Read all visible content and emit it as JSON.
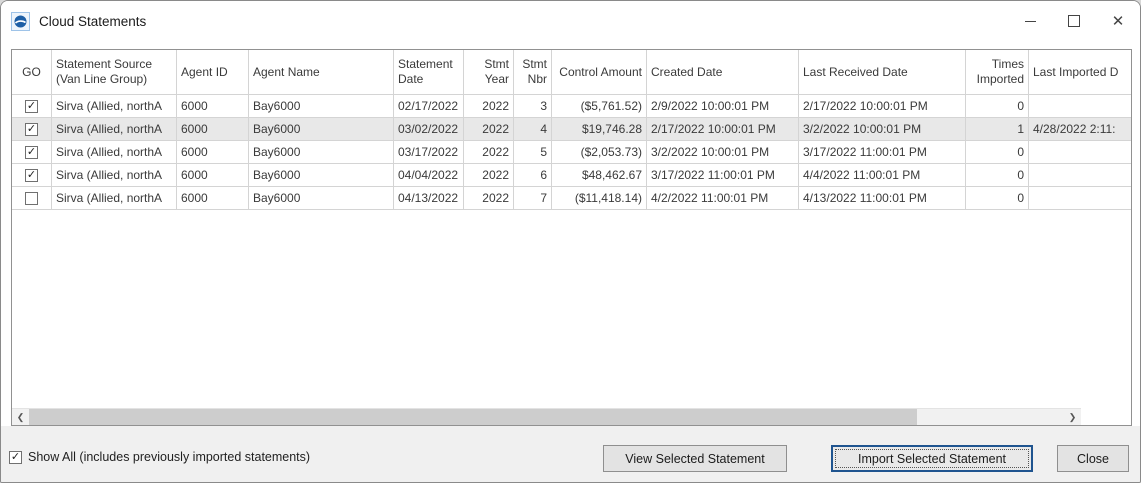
{
  "window": {
    "title": "Cloud Statements"
  },
  "icons": {
    "check": "✓",
    "close": "✕",
    "scroll_left": "❮",
    "scroll_right": "❯",
    "app_globe": "🌐"
  },
  "colors": {
    "grid_line": "#d4d4d4",
    "selected_row_bg": "#e8e8e8",
    "footer_bg": "#f0f0f0",
    "focus_border": "#1f548f",
    "app_icon_blue": "#1d5fa6"
  },
  "grid": {
    "columns": [
      {
        "key": "go",
        "label": "GO",
        "width": 40,
        "align": "center"
      },
      {
        "key": "source",
        "label": "Statement Source (Van Line Group)",
        "width": 125,
        "align": "left"
      },
      {
        "key": "agent_id",
        "label": "Agent ID",
        "width": 72,
        "align": "left"
      },
      {
        "key": "agent_name",
        "label": "Agent Name",
        "width": 145,
        "align": "left"
      },
      {
        "key": "stmt_date",
        "label": "Statement Date",
        "width": 70,
        "align": "left"
      },
      {
        "key": "stmt_year",
        "label": "Stmt Year",
        "width": 50,
        "align": "right"
      },
      {
        "key": "stmt_nbr",
        "label": "Stmt Nbr",
        "width": 38,
        "align": "right"
      },
      {
        "key": "control_amount",
        "label": "Control Amount",
        "width": 95,
        "align": "right"
      },
      {
        "key": "created_date",
        "label": "Created Date",
        "width": 152,
        "align": "left"
      },
      {
        "key": "last_received",
        "label": "Last Received Date",
        "width": 167,
        "align": "left"
      },
      {
        "key": "times_imported",
        "label": "Times Imported",
        "width": 63,
        "align": "right"
      },
      {
        "key": "last_imported",
        "label": "Last Imported D",
        "width": 110,
        "align": "left"
      }
    ],
    "rows": [
      {
        "go": true,
        "selected": false,
        "source": "Sirva (Allied, northA",
        "agent_id": "6000",
        "agent_name": "Bay6000",
        "stmt_date": "02/17/2022",
        "stmt_year": "2022",
        "stmt_nbr": "3",
        "control_amount": "($5,761.52)",
        "created_date": "2/9/2022 10:00:01 PM",
        "last_received": "2/17/2022 10:00:01 PM",
        "times_imported": "0",
        "last_imported": ""
      },
      {
        "go": true,
        "selected": true,
        "source": "Sirva (Allied, northA",
        "agent_id": "6000",
        "agent_name": "Bay6000",
        "stmt_date": "03/02/2022",
        "stmt_year": "2022",
        "stmt_nbr": "4",
        "control_amount": "$19,746.28",
        "created_date": "2/17/2022 10:00:01 PM",
        "last_received": "3/2/2022 10:00:01 PM",
        "times_imported": "1",
        "last_imported": "4/28/2022 2:11:"
      },
      {
        "go": true,
        "selected": false,
        "source": "Sirva (Allied, northA",
        "agent_id": "6000",
        "agent_name": "Bay6000",
        "stmt_date": "03/17/2022",
        "stmt_year": "2022",
        "stmt_nbr": "5",
        "control_amount": "($2,053.73)",
        "created_date": "3/2/2022 10:00:01 PM",
        "last_received": "3/17/2022 11:00:01 PM",
        "times_imported": "0",
        "last_imported": ""
      },
      {
        "go": true,
        "selected": false,
        "source": "Sirva (Allied, northA",
        "agent_id": "6000",
        "agent_name": "Bay6000",
        "stmt_date": "04/04/2022",
        "stmt_year": "2022",
        "stmt_nbr": "6",
        "control_amount": "$48,462.67",
        "created_date": "3/17/2022 11:00:01 PM",
        "last_received": "4/4/2022 11:00:01 PM",
        "times_imported": "0",
        "last_imported": ""
      },
      {
        "go": false,
        "selected": false,
        "source": "Sirva (Allied, northA",
        "agent_id": "6000",
        "agent_name": "Bay6000",
        "stmt_date": "04/13/2022",
        "stmt_year": "2022",
        "stmt_nbr": "7",
        "control_amount": "($11,418.14)",
        "created_date": "4/2/2022 11:00:01 PM",
        "last_received": "4/13/2022 11:00:01 PM",
        "times_imported": "0",
        "last_imported": ""
      }
    ]
  },
  "footer": {
    "show_all": {
      "label": "Show All (includes previously imported statements)",
      "checked": true
    },
    "buttons": [
      {
        "key": "view",
        "label": "View Selected Statement",
        "focused": false
      },
      {
        "key": "import",
        "label": "Import Selected Statement",
        "focused": true
      },
      {
        "key": "close",
        "label": "Close",
        "focused": false
      }
    ]
  }
}
